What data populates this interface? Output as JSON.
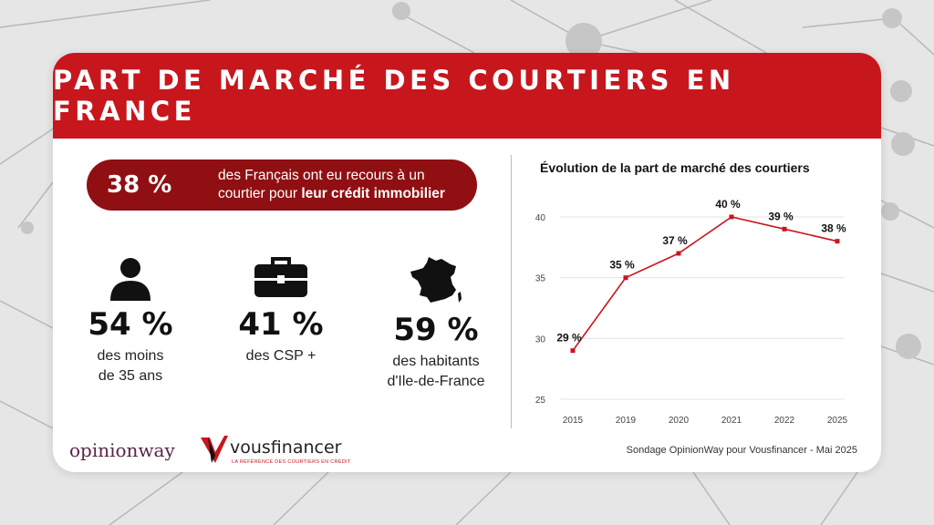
{
  "title": "PART DE MARCHÉ DES COURTIERS EN FRANCE",
  "highlight": {
    "value": "38 %",
    "text_before": "des Français ont eu recours à un courtier pour ",
    "text_bold": "leur crédit immobilier"
  },
  "stats": [
    {
      "icon": "person-icon",
      "value": "54 %",
      "label_line1": "des moins",
      "label_line2": "de 35 ans"
    },
    {
      "icon": "briefcase-icon",
      "value": "41 %",
      "label_line1": "des CSP +",
      "label_line2": ""
    },
    {
      "icon": "france-map-icon",
      "value": "59 %",
      "label_line1": "des habitants",
      "label_line2": "d'Ile-de-France"
    }
  ],
  "chart_data": {
    "type": "line",
    "title": "Évolution de la part de marché des courtiers",
    "x": [
      "2015",
      "2019",
      "2020",
      "2021",
      "2022",
      "2025"
    ],
    "values": [
      29,
      35,
      37,
      40,
      39,
      38
    ],
    "data_labels": [
      "29 %",
      "35 %",
      "37 %",
      "40 %",
      "39 %",
      "38 %"
    ],
    "yticks": [
      25,
      30,
      35,
      40
    ],
    "ylim": [
      25,
      40
    ],
    "grid": true,
    "line_color": "#c8161d"
  },
  "logos": {
    "opinionway": "opinionway",
    "vousfinancer": "vousfinancer",
    "vousfinancer_tagline": "LA RÉFÉRENCE DES COURTIERS EN CRÉDIT"
  },
  "source": "Sondage OpinionWay pour Vousfinancer - Mai 2025",
  "colors": {
    "accent": "#c8161d",
    "dark_red": "#8f0f12"
  }
}
